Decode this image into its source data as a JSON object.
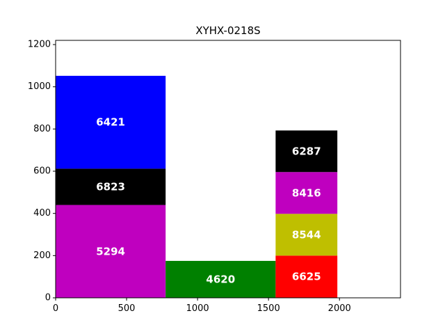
{
  "chart_data": {
    "type": "bar",
    "variant": "stacked-variable-width",
    "title": "XYHX-0218S",
    "xlabel": "",
    "ylabel": "",
    "xlim": [
      0,
      2430
    ],
    "ylim": [
      0,
      1220
    ],
    "x_ticks": [
      0,
      500,
      1000,
      1500,
      2000
    ],
    "y_ticks": [
      0,
      200,
      400,
      600,
      800,
      1000,
      1200
    ],
    "grid": false,
    "legend": "none",
    "segments": [
      {
        "label": "5294",
        "x0": 0,
        "x1": 775,
        "y0": 0,
        "y1": 440,
        "color": "#bf00bf"
      },
      {
        "label": "6823",
        "x0": 0,
        "x1": 775,
        "y0": 440,
        "y1": 612,
        "color": "#000000"
      },
      {
        "label": "6421",
        "x0": 0,
        "x1": 775,
        "y0": 612,
        "y1": 1052,
        "color": "#0000ff"
      },
      {
        "label": "4620",
        "x0": 775,
        "x1": 1550,
        "y0": 0,
        "y1": 175,
        "color": "#008000"
      },
      {
        "label": "6625",
        "x0": 1550,
        "x1": 1985,
        "y0": 0,
        "y1": 200,
        "color": "#ff0000"
      },
      {
        "label": "8544",
        "x0": 1550,
        "x1": 1985,
        "y0": 200,
        "y1": 398,
        "color": "#bfbf00"
      },
      {
        "label": "8416",
        "x0": 1550,
        "x1": 1985,
        "y0": 398,
        "y1": 596,
        "color": "#bf00bf"
      },
      {
        "label": "6287",
        "x0": 1550,
        "x1": 1985,
        "y0": 596,
        "y1": 793,
        "color": "#000000"
      }
    ]
  }
}
